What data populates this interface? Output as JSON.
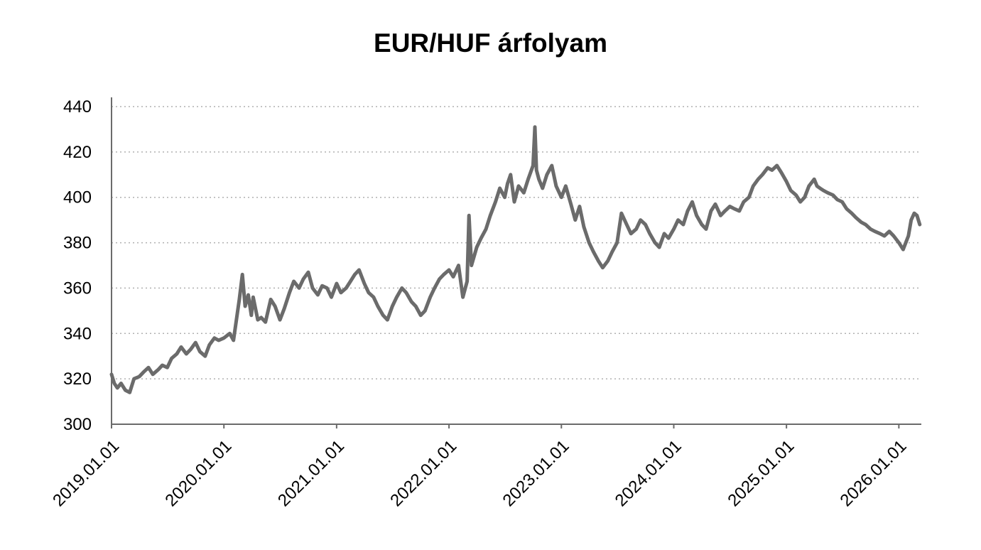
{
  "chart_data": {
    "type": "line",
    "title": "EUR/HUF árfolyam",
    "xlabel": "",
    "ylabel": "",
    "x_tick_labels": [
      "2019.01.01",
      "2020.01.01",
      "2021.01.01",
      "2022.01.01",
      "2023.01.01",
      "2024.01.01",
      "2025.01.01",
      "2026.01.01"
    ],
    "y_ticks": [
      300,
      320,
      340,
      360,
      380,
      400,
      420,
      440
    ],
    "ylim": [
      300,
      440
    ],
    "xlim": [
      "2019.01.01",
      "2026.03.15"
    ],
    "grid": "horizontal dotted",
    "legend": "none",
    "line_color": "#6b6b6b",
    "grid_color": "#b0b0b0",
    "series": [
      {
        "x": [
          "2019.01.01",
          "2019.01.10",
          "2019.01.20",
          "2019.02.01",
          "2019.02.15",
          "2019.03.01",
          "2019.03.15",
          "2019.04.01",
          "2019.04.15",
          "2019.05.01",
          "2019.05.15",
          "2019.06.01",
          "2019.06.15",
          "2019.07.01",
          "2019.07.15",
          "2019.08.01",
          "2019.08.15",
          "2019.09.01",
          "2019.09.15",
          "2019.10.01",
          "2019.10.15",
          "2019.11.01",
          "2019.11.15",
          "2019.12.01",
          "2019.12.15",
          "2020.01.01",
          "2020.01.20",
          "2020.02.01",
          "2020.02.20",
          "2020.03.01",
          "2020.03.10",
          "2020.03.20",
          "2020.03.30",
          "2020.04.05",
          "2020.04.20",
          "2020.05.01",
          "2020.05.15",
          "2020.06.01",
          "2020.06.15",
          "2020.07.01",
          "2020.07.15",
          "2020.08.01",
          "2020.08.15",
          "2020.09.01",
          "2020.09.15",
          "2020.10.01",
          "2020.10.15",
          "2020.11.01",
          "2020.11.15",
          "2020.12.01",
          "2020.12.15",
          "2021.01.01",
          "2021.01.15",
          "2021.02.01",
          "2021.02.15",
          "2021.03.01",
          "2021.03.15",
          "2021.04.01",
          "2021.04.15",
          "2021.05.01",
          "2021.05.15",
          "2021.06.01",
          "2021.06.15",
          "2021.07.01",
          "2021.07.15",
          "2021.08.01",
          "2021.08.15",
          "2021.09.01",
          "2021.09.15",
          "2021.10.01",
          "2021.10.15",
          "2021.11.01",
          "2021.11.15",
          "2021.12.01",
          "2021.12.15",
          "2022.01.01",
          "2022.01.15",
          "2022.02.01",
          "2022.02.15",
          "2022.03.01",
          "2022.03.07",
          "2022.03.15",
          "2022.04.01",
          "2022.04.15",
          "2022.05.01",
          "2022.05.15",
          "2022.06.01",
          "2022.06.15",
          "2022.07.01",
          "2022.07.10",
          "2022.07.20",
          "2022.08.01",
          "2022.08.15",
          "2022.09.01",
          "2022.09.15",
          "2022.10.01",
          "2022.10.07",
          "2022.10.12",
          "2022.10.20",
          "2022.11.01",
          "2022.11.15",
          "2022.12.01",
          "2022.12.15",
          "2023.01.01",
          "2023.01.15",
          "2023.02.01",
          "2023.02.15",
          "2023.03.01",
          "2023.03.15",
          "2023.04.01",
          "2023.04.15",
          "2023.05.01",
          "2023.05.15",
          "2023.06.01",
          "2023.06.15",
          "2023.07.01",
          "2023.07.15",
          "2023.08.01",
          "2023.08.15",
          "2023.09.01",
          "2023.09.15",
          "2023.10.01",
          "2023.10.15",
          "2023.11.01",
          "2023.11.15",
          "2023.12.01",
          "2023.12.15",
          "2024.01.01",
          "2024.01.15",
          "2024.02.01",
          "2024.02.15",
          "2024.03.01",
          "2024.03.15",
          "2024.04.01",
          "2024.04.15",
          "2024.05.01",
          "2024.05.15",
          "2024.06.01",
          "2024.06.15",
          "2024.07.01",
          "2024.07.15",
          "2024.08.01",
          "2024.08.15",
          "2024.09.01",
          "2024.09.15",
          "2024.10.01",
          "2024.10.15",
          "2024.11.01",
          "2024.11.15",
          "2024.12.01",
          "2024.12.15",
          "2025.01.01",
          "2025.01.15",
          "2025.02.01",
          "2025.02.15",
          "2025.03.01",
          "2025.03.15",
          "2025.04.01",
          "2025.04.10",
          "2025.04.20",
          "2025.05.01",
          "2025.05.15",
          "2025.06.01",
          "2025.06.15",
          "2025.07.01",
          "2025.07.15",
          "2025.08.01",
          "2025.08.15",
          "2025.09.01",
          "2025.09.15",
          "2025.10.01",
          "2025.10.15",
          "2025.11.01",
          "2025.11.15",
          "2025.12.01",
          "2025.12.15",
          "2026.01.01",
          "2026.01.15",
          "2026.02.01",
          "2026.02.10",
          "2026.02.20",
          "2026.03.01",
          "2026.03.10"
        ],
        "y": [
          322,
          318,
          316,
          318,
          315,
          314,
          320,
          321,
          323,
          325,
          322,
          324,
          326,
          325,
          329,
          331,
          334,
          331,
          333,
          336,
          332,
          330,
          335,
          338,
          337,
          338,
          340,
          337,
          355,
          366,
          352,
          357,
          348,
          356,
          346,
          347,
          345,
          355,
          352,
          346,
          351,
          358,
          363,
          360,
          364,
          367,
          360,
          357,
          361,
          360,
          356,
          362,
          358,
          360,
          363,
          366,
          368,
          362,
          358,
          356,
          352,
          348,
          346,
          352,
          356,
          360,
          358,
          354,
          352,
          348,
          350,
          356,
          360,
          364,
          366,
          368,
          365,
          370,
          356,
          363,
          392,
          370,
          378,
          382,
          386,
          392,
          398,
          404,
          400,
          406,
          410,
          398,
          405,
          402,
          408,
          414,
          431,
          412,
          408,
          404,
          410,
          414,
          405,
          400,
          405,
          397,
          390,
          396,
          387,
          380,
          376,
          372,
          369,
          372,
          376,
          380,
          393,
          388,
          384,
          386,
          390,
          388,
          384,
          380,
          378,
          384,
          382,
          386,
          390,
          388,
          394,
          398,
          392,
          388,
          386,
          394,
          397,
          392,
          394,
          396,
          395,
          394,
          398,
          400,
          405,
          408,
          410,
          413,
          412,
          414,
          411,
          407,
          403,
          401,
          398,
          400,
          405,
          408,
          405,
          404,
          403,
          402,
          401,
          399,
          398,
          395,
          393,
          391,
          389,
          388,
          386,
          385,
          384,
          383,
          385,
          383,
          380,
          377,
          383,
          390,
          393,
          392,
          388
        ]
      }
    ]
  }
}
